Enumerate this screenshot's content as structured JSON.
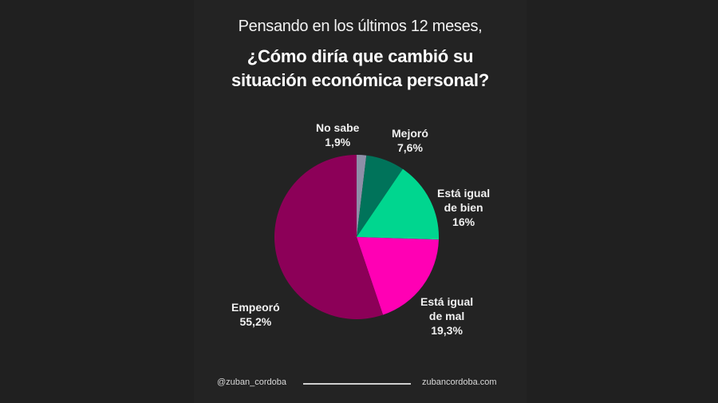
{
  "header": {
    "subtitle": "Pensando en los últimos 12 meses,",
    "title_line1": "¿Cómo diría que cambió su",
    "title_line2": "situación económica personal?"
  },
  "chart_data": {
    "type": "pie",
    "title": "¿Cómo diría que cambió su situación económica personal?",
    "subtitle": "Pensando en los últimos 12 meses,",
    "start_angle": "12 o'clock, clockwise",
    "categories": [
      "No sabe",
      "Mejoró",
      "Está igual de bien",
      "Está igual de mal",
      "Empeoró"
    ],
    "values": [
      1.9,
      7.6,
      16,
      19.3,
      55.2
    ],
    "value_labels": [
      "1,9%",
      "7,6%",
      "16%",
      "19,3%",
      "55,2%"
    ],
    "colors": [
      "#8e8fa8",
      "#00735a",
      "#00d68f",
      "#ff00b4",
      "#8c0058"
    ],
    "legend": "none (direct labels)"
  },
  "labels": {
    "no_sabe": {
      "line1": "No sabe",
      "line2": "1,9%"
    },
    "mejoro": {
      "line1": "Mejoró",
      "line2": "7,6%"
    },
    "igual_bien": {
      "line1": "Está igual",
      "line2": "de bien",
      "line3": "16%"
    },
    "igual_mal": {
      "line1": "Está igual",
      "line2": "de mal",
      "line3": "19,3%"
    },
    "empeoro": {
      "line1": "Empeoró",
      "line2": "55,2%"
    }
  },
  "footer": {
    "handle": "@zuban_cordoba",
    "website": "zubancordoba.com"
  }
}
